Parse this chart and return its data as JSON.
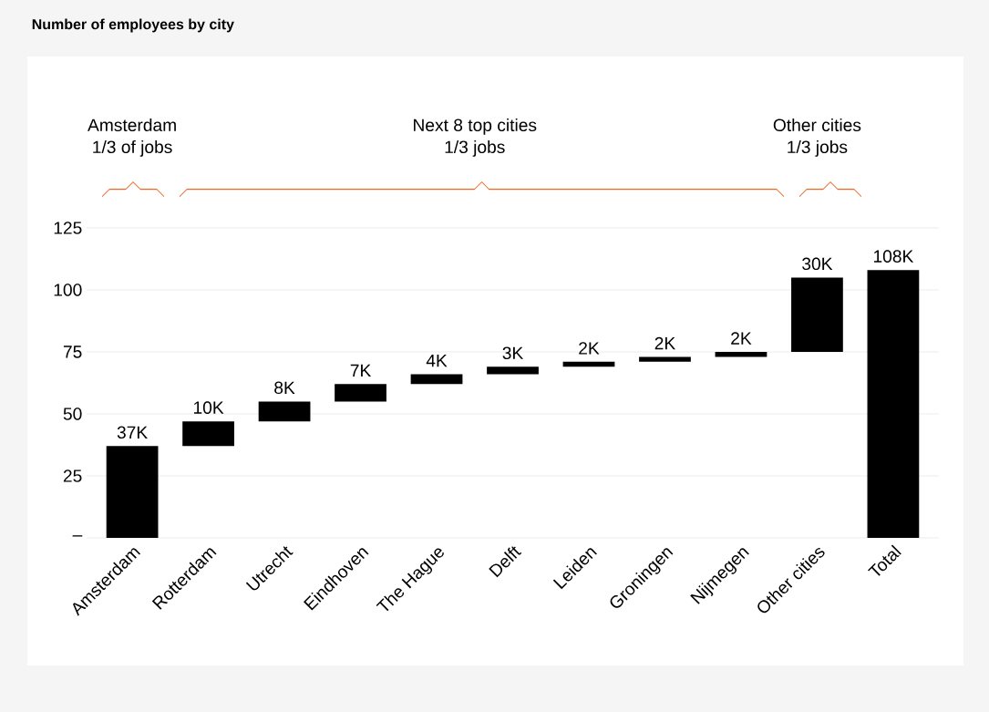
{
  "chart_data": {
    "type": "bar",
    "title": "Number of employees by city",
    "categories": [
      "Amsterdam",
      "Rotterdam",
      "Utrecht",
      "Eindhoven",
      "The Hague",
      "Delft",
      "Leiden",
      "Groningen",
      "Nijmegen",
      "Other cities",
      "Total"
    ],
    "values": [
      37,
      10,
      8,
      7,
      4,
      3,
      2,
      2,
      2,
      30,
      108
    ],
    "base": [
      0,
      37,
      47,
      55,
      62,
      66,
      69,
      71,
      73,
      75,
      0
    ],
    "value_labels": [
      "37K",
      "10K",
      "8K",
      "7K",
      "4K",
      "3K",
      "2K",
      "2K",
      "2K",
      "30K",
      "108K"
    ],
    "color": "#000000",
    "ylim": [
      0,
      125
    ],
    "yticks": [
      {
        "value": 0,
        "label": "–"
      },
      25,
      50,
      75,
      100,
      125
    ],
    "grid": "y",
    "annotations": [
      "Amsterdam",
      "1/3 of jobs",
      "Next 8 top cities",
      "1/3 jobs",
      "Other cities",
      "1/3 jobs"
    ]
  }
}
